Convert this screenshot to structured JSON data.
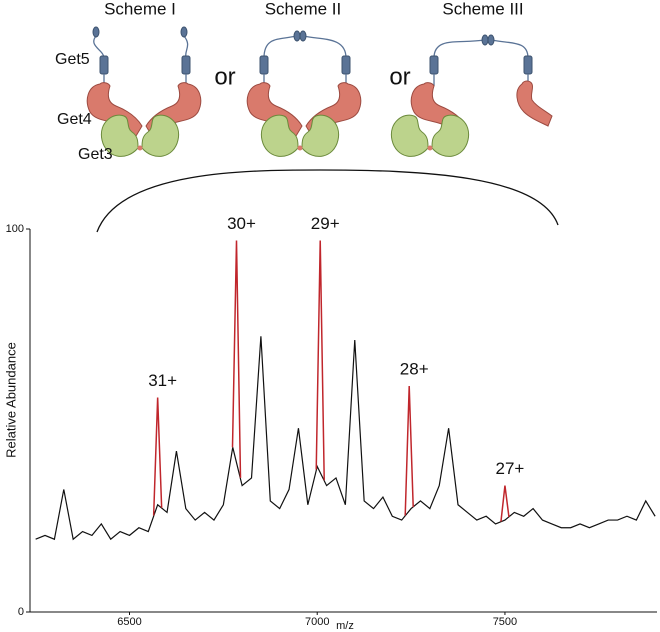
{
  "diagram": {
    "schemes": [
      "Scheme I",
      "Scheme II",
      "Scheme III"
    ],
    "connectors": [
      "or",
      "or"
    ],
    "proteins": [
      "Get5",
      "Get4",
      "Get3"
    ]
  },
  "chart_data": {
    "type": "line",
    "x_label": "m/z",
    "y_label": "Relative Abundance",
    "color": "#111111",
    "peak_color": "#c0262c",
    "xlim": [
      6235,
      7905
    ],
    "ylim": [
      0,
      100
    ],
    "xticks": [
      6500,
      7000,
      7500
    ],
    "yticks": [
      0,
      100
    ],
    "x": [
      6250,
      6275,
      6300,
      6325,
      6350,
      6375,
      6400,
      6425,
      6450,
      6475,
      6500,
      6525,
      6550,
      6575,
      6600,
      6625,
      6650,
      6675,
      6700,
      6725,
      6750,
      6775,
      6800,
      6825,
      6850,
      6875,
      6900,
      6925,
      6950,
      6975,
      7000,
      7025,
      7050,
      7075,
      7100,
      7125,
      7150,
      7175,
      7200,
      7225,
      7250,
      7275,
      7300,
      7325,
      7350,
      7375,
      7400,
      7425,
      7450,
      7475,
      7500,
      7525,
      7550,
      7575,
      7600,
      7625,
      7650,
      7675,
      7700,
      7725,
      7750,
      7775,
      7800,
      7825,
      7850,
      7875,
      7900
    ],
    "values": [
      19,
      20,
      19,
      32,
      19,
      21,
      20,
      23,
      19,
      21,
      20,
      22,
      21,
      28,
      26,
      42,
      27,
      24,
      26,
      24,
      28,
      43,
      33,
      35,
      72,
      29,
      27,
      32,
      48,
      28,
      38,
      33,
      35,
      28,
      71,
      29,
      27,
      30,
      25,
      24,
      27,
      29,
      27,
      33,
      48,
      28,
      26,
      24,
      25,
      23,
      24,
      26,
      25,
      27,
      24,
      23,
      22,
      22,
      23,
      22,
      23,
      24,
      24,
      25,
      24,
      29,
      25
    ],
    "peaks": [
      {
        "label": "31+",
        "x": 6575,
        "value": 56
      },
      {
        "label": "30+",
        "x": 6785,
        "value": 97
      },
      {
        "label": "29+",
        "x": 7008,
        "value": 97
      },
      {
        "label": "28+",
        "x": 7245,
        "value": 59
      },
      {
        "label": "27+",
        "x": 7500,
        "value": 33
      }
    ]
  }
}
